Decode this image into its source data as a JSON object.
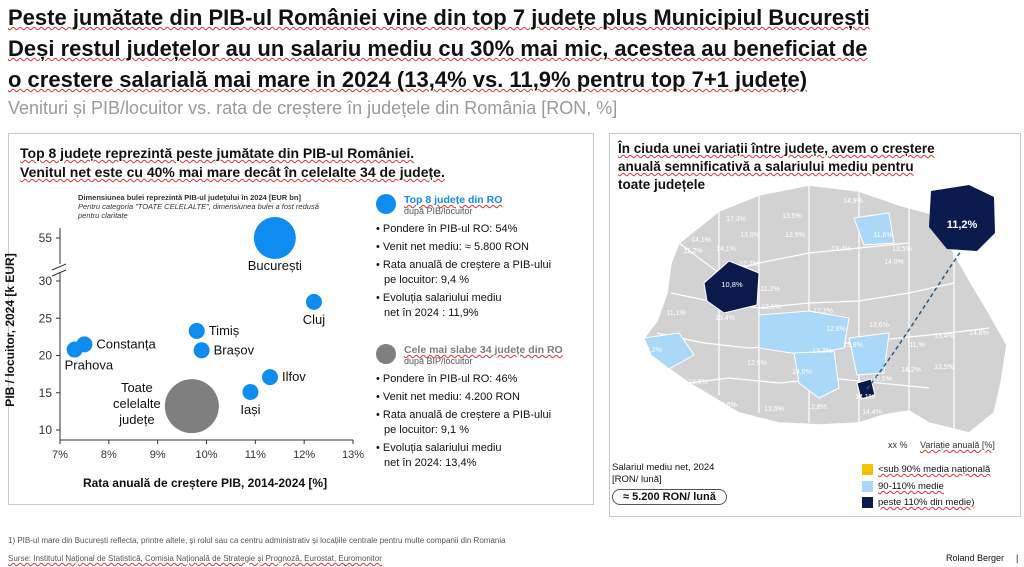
{
  "title": {
    "line1": "Peste jumătate din PIB-ul României vine din top 7 județe plus Municipiul București",
    "line2": "Deși restul județelor au un salariu mediu cu 30% mai mic, acestea au beneficiat de",
    "line3": "o crestere salarială mai mare in 2024 (13,4% vs. 11,9% pentru top 7+1 județe)"
  },
  "subtitle": "Venituri și PIB/locuitor vs. rata de creștere în județele din România [RON, %]",
  "left_panel": {
    "heading_line1": "Top 8 județe reprezintă peste jumătate din PIB-ul României.",
    "heading_line2": "Venitul net este cu 40% mai mare decât în celelalte 34 de județe.",
    "bubble_note_line1": "Dimensiunea bulei reprezintă PIB-ul județului în 2024 [EUR bn]",
    "bubble_note_line2": "Pentru categoria \"TOATE CELELALTE\", dimensiunea bulei a fost redusă",
    "bubble_note_line3": "pentru claritate"
  },
  "chart_data": {
    "type": "scatter",
    "xlabel": "Rata anuală de creștere PIB, 2014-2024 [%]",
    "ylabel": "PIB / locuitor, 2024 [k EUR]",
    "xlim": [
      7,
      13
    ],
    "x_ticks": [
      "7%",
      "8%",
      "9%",
      "10%",
      "11%",
      "12%",
      "13%"
    ],
    "y_ticks": [
      "10",
      "15",
      "20",
      "25",
      "30",
      "55"
    ],
    "y_axis_break": true,
    "grid": false,
    "points": [
      {
        "label": "București",
        "x": 11.4,
        "y": 55,
        "size": "large",
        "color": "#0f8cf0"
      },
      {
        "label": "Cluj",
        "x": 12.2,
        "y": 27.2,
        "size": "small",
        "color": "#0f8cf0"
      },
      {
        "label": "Timiș",
        "x": 9.8,
        "y": 23.3,
        "size": "small",
        "color": "#0f8cf0"
      },
      {
        "label": "Brașov",
        "x": 9.9,
        "y": 20.7,
        "size": "small",
        "color": "#0f8cf0"
      },
      {
        "label": "Constanța",
        "x": 7.5,
        "y": 21.5,
        "size": "small",
        "color": "#0f8cf0"
      },
      {
        "label": "Prahova",
        "x": 7.3,
        "y": 20.8,
        "size": "small",
        "color": "#0f8cf0"
      },
      {
        "label": "Ilfov",
        "x": 11.3,
        "y": 17.1,
        "size": "small",
        "color": "#0f8cf0"
      },
      {
        "label": "Iași",
        "x": 10.9,
        "y": 15.1,
        "size": "small",
        "color": "#0f8cf0"
      },
      {
        "label": "Toate celelalte județe",
        "x": 9.7,
        "y": 13.2,
        "size": "large",
        "color": "#7f7f7f"
      }
    ]
  },
  "legend_top": {
    "title": "Top 8 județe din RO",
    "subtitle": "după PIB/locuitor",
    "items": [
      "Pondere în PIB-ul RO: 54%",
      "Venit net mediu: ≈ 5.800 RON",
      "Rata anuală de creștere a PIB-ului",
      "pe locuitor: 9,4 %",
      "Evoluția salariului mediu",
      "net în 2024 : 11,9%"
    ],
    "color": "#0f8cf0"
  },
  "legend_bottom": {
    "title": "Cele mai slabe 34 județe din RO",
    "subtitle": "după BIP/locuitor",
    "items": [
      "Pondere în PIB-ul RO: 46%",
      "Venit net mediu: 4.200 RON",
      "Rata anuală de creștere a PIB-ului",
      "pe locuitor: 9,1 %",
      "Evoluția salariului mediu",
      "net în 2024: 13,4%"
    ],
    "color": "#7f7f7f"
  },
  "right_panel": {
    "heading_line1": "În ciuda unei variații între județe, avem o creștere",
    "heading_line2": "anuală semnificativă a salariului mediu pentru",
    "heading_line3": "toate județele",
    "map_values": [
      "17,3%",
      "13,5%",
      "14,9%",
      "14,1%",
      "13,8%",
      "13,9%",
      "11,6%",
      "11,2%",
      "14,1%",
      "13,4%",
      "13,5%",
      "14,0%",
      "12,7%",
      "12,5%",
      "12,1%",
      "11,1%",
      "13,4%",
      "12,6%",
      "10,8%",
      "11,2%",
      "12,8%",
      "11,%",
      "13,8%",
      "13,3%",
      "12,5%",
      "14,0%",
      "13,6%",
      "14,1%",
      "14,2%",
      "12,2%",
      "13,6%",
      "13,6%",
      "12,8%",
      "13,5%",
      "13,5%",
      "14,4%",
      "13,4%",
      "14,8%"
    ],
    "bucharest_value": "11,2%",
    "cluj_value": "10,8%",
    "ilfov_value": "14,4%",
    "variation_code": "xx %",
    "variation_label": "Variație anuală [%]",
    "salary_label_line1": "Salariul mediu net, 2024",
    "salary_label_line2": "[RON/ lună]",
    "salary_value": "≈ 5.200 RON/ lună",
    "legend": [
      {
        "label": "<sub 90% media națională",
        "color": "#f6c000"
      },
      {
        "label": "90-110% medie",
        "color": "#a9d8f8"
      },
      {
        "label": "peste 110% din medie)",
        "color": "#0b1a4d"
      }
    ]
  },
  "footer": {
    "note": "1) PIB-ul mare din București reflecta, printre altele, și rolul sau ca centru administrativ și locațiile centrale pentru multe companii din Romania",
    "source": "Surse: Institutul Național de Statistică, Comisia Națională de Strategie și Prognoză, Eurostat, Euromonitor",
    "brand": "Roland Berger",
    "page": "|"
  }
}
